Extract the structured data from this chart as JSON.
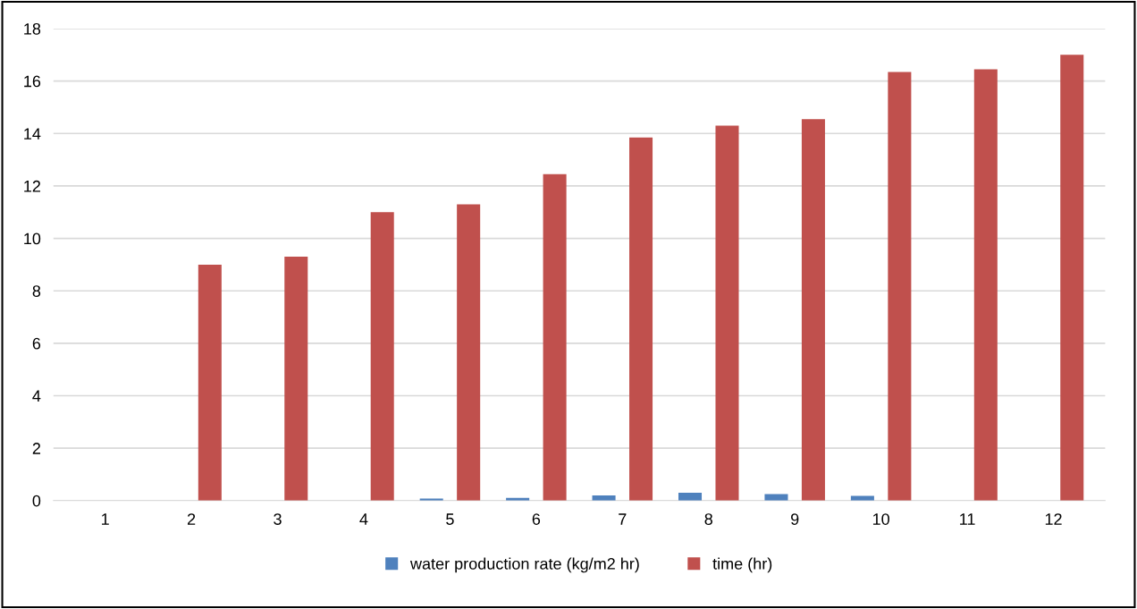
{
  "chart_data": {
    "type": "bar",
    "categories": [
      "1",
      "2",
      "3",
      "4",
      "5",
      "6",
      "7",
      "8",
      "9",
      "10",
      "11",
      "12"
    ],
    "series": [
      {
        "name": "water production rate (kg/m2 hr)",
        "color": "#4f81bd",
        "values": [
          0,
          0,
          0,
          0,
          0.08,
          0.1,
          0.2,
          0.3,
          0.25,
          0.18,
          0,
          0
        ]
      },
      {
        "name": "time (hr)",
        "color": "#c0504d",
        "values": [
          0,
          9,
          9.3,
          11,
          11.3,
          12.45,
          13.85,
          14.3,
          14.55,
          16.35,
          16.45,
          17
        ]
      }
    ],
    "ylim": [
      0,
      18
    ],
    "yticks": [
      0,
      2,
      4,
      6,
      8,
      10,
      12,
      14,
      16,
      18
    ],
    "grid": "y",
    "legend": "bottom"
  }
}
